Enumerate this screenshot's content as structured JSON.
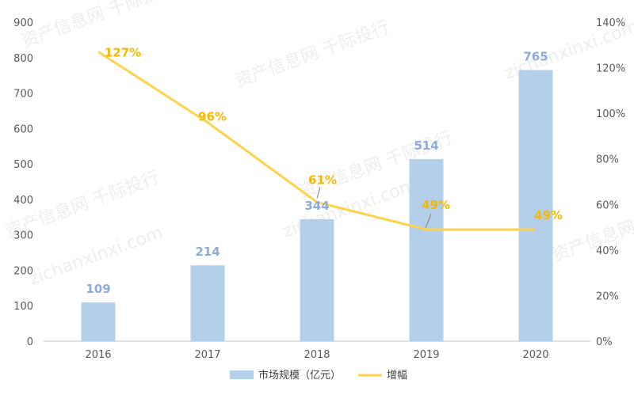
{
  "chart_data": {
    "type": "bar",
    "categories": [
      "2016",
      "2017",
      "2018",
      "2019",
      "2020"
    ],
    "series": [
      {
        "name": "市场规模（亿元）",
        "type": "bar",
        "axis": "left",
        "values": [
          109,
          214,
          344,
          514,
          765
        ],
        "labels": [
          "109",
          "214",
          "344",
          "514",
          "765"
        ]
      },
      {
        "name": "增幅",
        "type": "line",
        "axis": "right",
        "values": [
          127,
          96,
          61,
          49,
          49
        ],
        "labels": [
          "127%",
          "96%",
          "61%",
          "49%",
          "49%"
        ]
      }
    ],
    "y_left": {
      "ylim": [
        0,
        900
      ],
      "ticks": [
        "0",
        "100",
        "200",
        "300",
        "400",
        "500",
        "600",
        "700",
        "800",
        "900"
      ]
    },
    "y_right": {
      "ylim": [
        0,
        140
      ],
      "ticks": [
        "0%",
        "20%",
        "40%",
        "60%",
        "80%",
        "100%",
        "120%",
        "140%"
      ]
    },
    "title": "",
    "xlabel": "",
    "ylabel": "",
    "grid": false,
    "legend_position": "bottom",
    "colors": {
      "bar": "#B4CFEA",
      "bar_label": "#8FAADC",
      "line": "#FFD24D",
      "line_label": "#F5B800",
      "axis": "#BFBFBF",
      "tick": "#595959"
    }
  },
  "watermark": [
    "资产信息网 千际投行",
    "zichanxinxi.com"
  ]
}
